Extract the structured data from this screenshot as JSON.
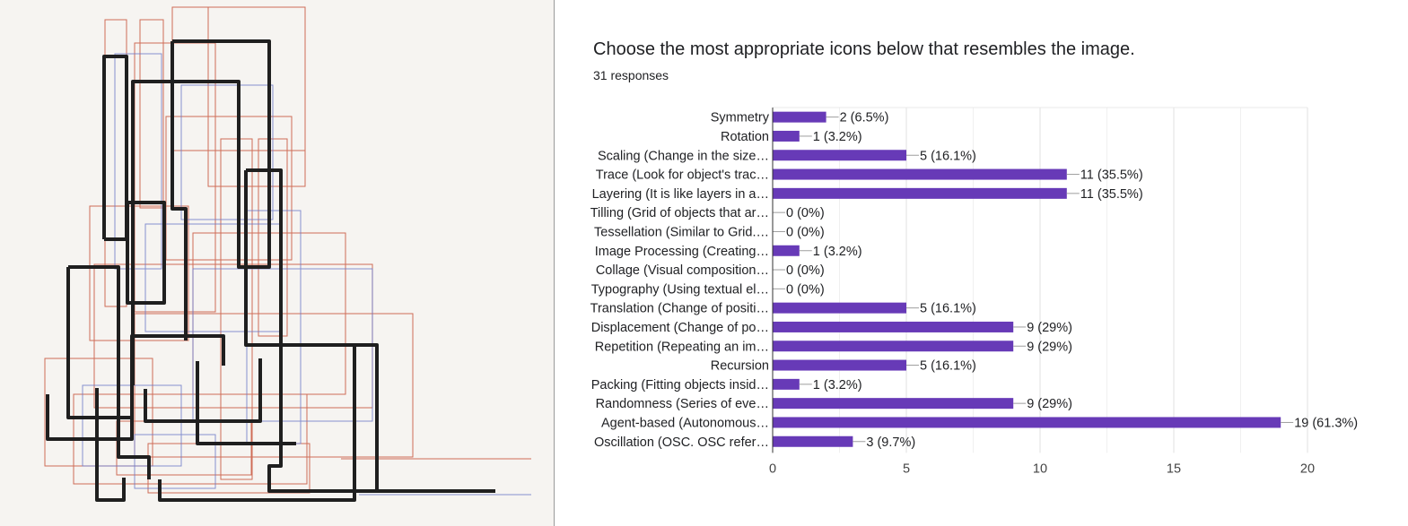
{
  "question": {
    "title": "Choose the most appropriate icons below that resembles the image.",
    "responses": "31 responses"
  },
  "artwork": {
    "description_colors": {
      "black": "#1f1f1f",
      "red": "#c9553b",
      "blue": "#6a78c8"
    }
  },
  "chart_data": {
    "type": "bar",
    "orientation": "horizontal",
    "title": "",
    "xlabel": "",
    "ylabel": "",
    "xlim": [
      0,
      20
    ],
    "xticks": [
      0,
      5,
      10,
      15,
      20
    ],
    "grid": true,
    "bar_color": "#673ab7",
    "categories": [
      "Symmetry",
      "Rotation",
      "Scaling (Change in the size…",
      "Trace (Look for object's trac…",
      "Layering (It is like layers in a…",
      "Tilling (Grid of objects that ar…",
      "Tessellation (Similar to Grid.…",
      "Image Processing (Creating…",
      "Collage (Visual composition…",
      "Typography (Using textual el…",
      "Translation (Change of positi…",
      "Displacement (Change of po…",
      "Repetition (Repeating an im…",
      "Recursion",
      "Packing (Fitting objects insid…",
      "Randomness (Series of eve…",
      "Agent-based (Autonomous…",
      "Oscillation (OSC. OSC refer…"
    ],
    "values": [
      2,
      1,
      5,
      11,
      11,
      0,
      0,
      1,
      0,
      0,
      5,
      9,
      9,
      5,
      1,
      9,
      19,
      3
    ],
    "labels": [
      "2 (6.5%)",
      "1 (3.2%)",
      "5 (16.1%)",
      "11 (35.5%)",
      "11 (35.5%)",
      "0 (0%)",
      "0 (0%)",
      "1 (3.2%)",
      "0 (0%)",
      "0 (0%)",
      "5 (16.1%)",
      "9 (29%)",
      "9 (29%)",
      "5 (16.1%)",
      "1 (3.2%)",
      "9 (29%)",
      "19 (61.3%)",
      "3 (9.7%)"
    ]
  }
}
